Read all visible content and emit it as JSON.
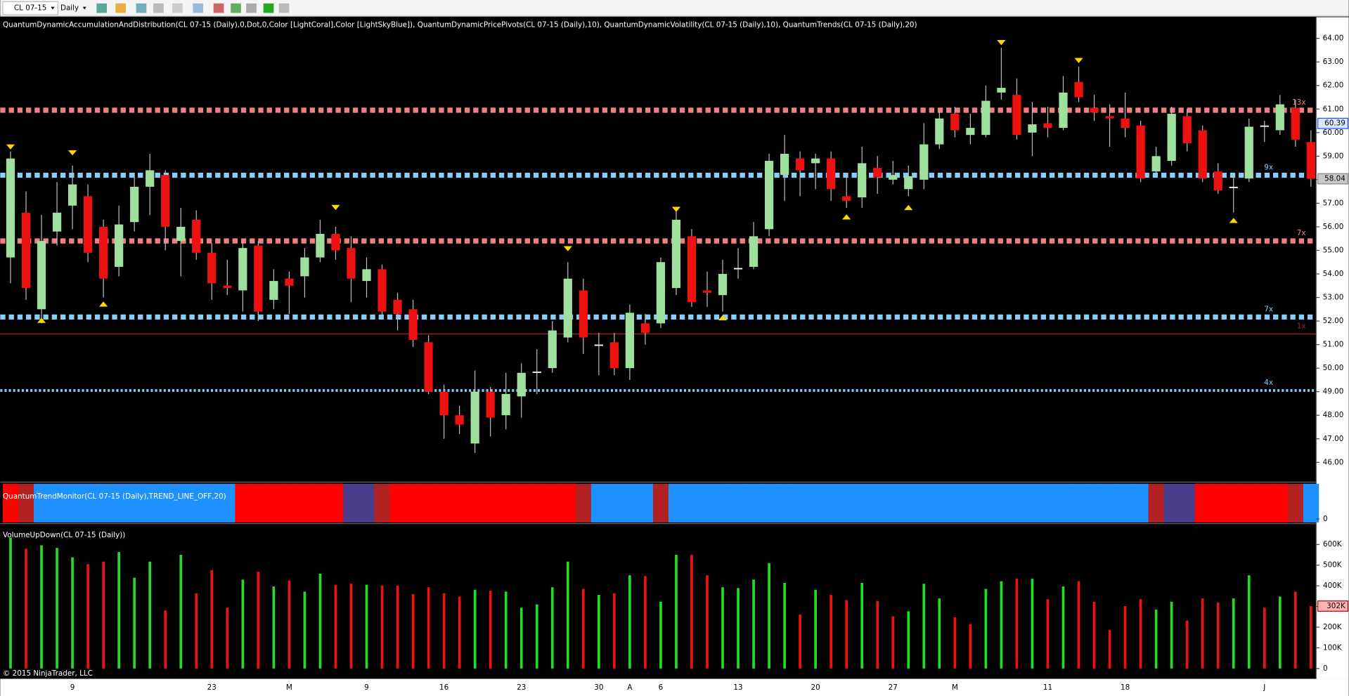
{
  "toolbar": {
    "symbol": "CL 07-15",
    "interval": "Daily"
  },
  "chart_data": [
    {
      "type": "candlestick",
      "title": "QuantumDynamicAccumulationAndDistribution(CL 07-15 (Daily),0,Dot,0,Color [LightCoral],Color [LightSkyBlue]), QuantumDynamicPricePivots(CL 07-15 (Daily),10), QuantumDynamicVolatility(CL 07-15 (Daily),10), QuantumTrends(CL 07-15 (Daily),20)",
      "categories": [
        null,
        null,
        null,
        null,
        "9",
        null,
        null,
        null,
        null,
        null,
        null,
        null,
        null,
        "23",
        null,
        null,
        null,
        null,
        "M",
        null,
        null,
        null,
        null,
        "9",
        null,
        null,
        null,
        null,
        "16",
        null,
        null,
        null,
        null,
        "23",
        null,
        null,
        null,
        null,
        "30",
        null,
        "A",
        null,
        "6",
        null,
        null,
        null,
        null,
        "13",
        null,
        null,
        null,
        null,
        "20",
        null,
        null,
        null,
        null,
        "27",
        null,
        null,
        null,
        "M",
        null,
        null,
        null,
        null,
        null,
        "11",
        null,
        null,
        null,
        null,
        "18",
        null,
        null,
        null,
        null,
        null,
        null,
        null,
        null,
        "J",
        null,
        null,
        null
      ],
      "open": [
        54.7,
        56.6,
        52.5,
        55.8,
        56.9,
        57.3,
        56.0,
        54.3,
        56.2,
        57.7,
        58.2,
        55.4,
        56.3,
        54.9,
        53.5,
        53.3,
        55.2,
        52.9,
        53.8,
        53.9,
        54.7,
        55.7,
        55.1,
        53.7,
        54.2,
        52.9,
        52.5,
        51.1,
        49.0,
        48.0,
        46.8,
        49.0,
        48.0,
        48.8,
        49.8,
        50.0,
        51.3,
        53.3,
        51.0,
        51.1,
        50.0,
        51.9,
        51.9,
        53.4,
        55.6,
        53.3,
        53.1,
        54.2,
        54.3,
        55.9,
        58.2,
        58.9,
        58.7,
        58.9,
        57.3,
        57.25,
        58.5,
        58.0,
        57.6,
        58.0,
        59.5,
        60.8,
        59.9,
        59.9,
        61.7,
        61.6,
        60.0,
        60.4,
        60.2,
        62.15,
        61.05,
        60.7,
        60.6,
        60.3,
        58.35,
        58.8,
        60.7,
        60.1,
        58.35,
        57.7,
        58.05,
        60.3,
        60.1,
        61.05,
        59.6
      ],
      "high": [
        59.2,
        57.5,
        56.5,
        57.9,
        58.6,
        57.8,
        56.3,
        56.9,
        58.3,
        59.1,
        58.4,
        56.8,
        56.7,
        55.3,
        54.6,
        55.4,
        55.4,
        54.2,
        54.1,
        55.1,
        56.3,
        56.0,
        55.6,
        54.7,
        54.4,
        53.2,
        52.9,
        51.4,
        49.3,
        48.4,
        49.9,
        49.2,
        49.8,
        50.2,
        50.8,
        52.0,
        54.5,
        53.8,
        51.5,
        51.5,
        52.7,
        52.3,
        54.7,
        56.7,
        55.9,
        54.1,
        54.6,
        55.1,
        56.2,
        59.1,
        59.9,
        59.2,
        59.1,
        59.2,
        58.2,
        59.4,
        59.0,
        58.8,
        58.6,
        60.4,
        60.9,
        61.1,
        60.8,
        62.0,
        63.6,
        62.3,
        61.3,
        61.1,
        62.4,
        62.8,
        61.6,
        61.2,
        61.7,
        60.5,
        59.4,
        61.1,
        61.0,
        60.3,
        58.7,
        58.2,
        60.6,
        60.5,
        61.6,
        61.4,
        60.1
      ],
      "low": [
        53.6,
        52.9,
        51.9,
        55.2,
        55.9,
        54.5,
        53.0,
        53.9,
        55.8,
        56.5,
        55.0,
        53.9,
        54.6,
        52.9,
        53.1,
        52.4,
        52.0,
        52.5,
        52.3,
        53.0,
        54.5,
        54.6,
        52.8,
        53.0,
        52.2,
        51.6,
        50.9,
        48.9,
        47.0,
        47.2,
        46.4,
        47.1,
        47.4,
        47.9,
        48.9,
        49.8,
        51.1,
        50.6,
        49.7,
        49.7,
        49.5,
        51.0,
        51.7,
        53.1,
        52.6,
        52.6,
        52.4,
        53.8,
        54.2,
        55.6,
        57.1,
        57.3,
        57.6,
        57.1,
        56.8,
        56.8,
        57.4,
        57.8,
        57.3,
        57.6,
        59.3,
        59.8,
        59.5,
        59.8,
        61.4,
        59.7,
        59.0,
        59.8,
        60.1,
        61.3,
        60.5,
        59.4,
        59.8,
        57.9,
        58.2,
        58.6,
        59.2,
        57.9,
        57.4,
        56.6,
        57.9,
        59.6,
        59.9,
        59.4,
        57.7
      ],
      "close": [
        58.9,
        53.4,
        55.4,
        56.6,
        57.8,
        54.9,
        53.8,
        56.1,
        57.7,
        58.4,
        56.0,
        56.0,
        54.9,
        53.6,
        53.4,
        55.1,
        52.4,
        53.7,
        53.5,
        54.7,
        55.7,
        55.0,
        53.8,
        54.2,
        52.4,
        52.3,
        51.2,
        49.0,
        48.0,
        47.6,
        49.0,
        47.9,
        48.9,
        49.8,
        49.85,
        51.6,
        53.8,
        51.3,
        50.95,
        50.0,
        52.35,
        51.5,
        54.5,
        56.3,
        52.8,
        53.2,
        54.0,
        54.25,
        55.6,
        58.8,
        59.1,
        58.4,
        58.9,
        57.6,
        57.1,
        58.7,
        58.1,
        58.2,
        58.15,
        59.5,
        60.6,
        60.1,
        60.2,
        61.35,
        61.9,
        59.9,
        60.35,
        60.2,
        61.7,
        61.5,
        60.85,
        60.6,
        60.2,
        58.05,
        59.0,
        60.8,
        59.55,
        58.05,
        57.55,
        57.65,
        60.25,
        60.25,
        61.2,
        59.7,
        58.04
      ],
      "up_color": "#9fe09f",
      "down_color": "#ee1111",
      "pivot_color": "#ffd700",
      "pivot_high": [
        59.39,
        null,
        null,
        null,
        59.14,
        null,
        null,
        null,
        null,
        null,
        null,
        null,
        null,
        null,
        null,
        null,
        null,
        null,
        null,
        null,
        null,
        56.82,
        null,
        null,
        null,
        null,
        null,
        null,
        null,
        null,
        null,
        null,
        null,
        null,
        null,
        null,
        55.07,
        null,
        null,
        null,
        null,
        null,
        null,
        56.74,
        null,
        null,
        null,
        null,
        null,
        null,
        null,
        null,
        null,
        null,
        null,
        null,
        null,
        null,
        null,
        null,
        null,
        null,
        null,
        null,
        63.82,
        null,
        null,
        null,
        null,
        63.06,
        null,
        null,
        null,
        null,
        null,
        null,
        null,
        null,
        null,
        null,
        null,
        null,
        null,
        null,
        null
      ],
      "pivot_low": [
        null,
        null,
        52.03,
        null,
        null,
        null,
        52.72,
        null,
        null,
        null,
        null,
        null,
        null,
        null,
        null,
        null,
        null,
        null,
        null,
        null,
        null,
        null,
        null,
        null,
        null,
        null,
        null,
        null,
        null,
        null,
        null,
        null,
        null,
        null,
        null,
        null,
        null,
        null,
        null,
        null,
        null,
        null,
        null,
        null,
        null,
        null,
        52.14,
        null,
        null,
        null,
        null,
        null,
        null,
        null,
        56.42,
        null,
        null,
        null,
        56.82,
        null,
        null,
        null,
        null,
        null,
        null,
        null,
        null,
        null,
        null,
        null,
        null,
        null,
        null,
        null,
        null,
        null,
        null,
        null,
        null,
        56.27,
        null,
        null,
        null,
        null,
        null
      ],
      "levels": [
        {
          "value": 60.95,
          "label": "13x",
          "color": "#f08080",
          "style": "thick"
        },
        {
          "value": 58.19,
          "label": "9x",
          "color": "#87cefa",
          "style": "thick"
        },
        {
          "value": 55.4,
          "label": "7x",
          "color": "#f08080",
          "style": "thick"
        },
        {
          "value": 52.17,
          "label": "7x",
          "color": "#87cefa",
          "style": "thick"
        },
        {
          "value": 51.45,
          "label": "1x",
          "color": "#a52a2a",
          "style": "solid"
        },
        {
          "value": 49.05,
          "label": "4x",
          "color": "#87cefa",
          "style": "thin"
        }
      ],
      "badges": [
        {
          "value": 60.39,
          "color": "#dce6ff",
          "border": "#1e50ff"
        },
        {
          "value": 58.04,
          "color": "#c8c8c8",
          "border": "#888888"
        }
      ],
      "ylim": [
        45.2,
        64.9
      ],
      "yticks": [
        {
          "value": 46,
          "label": "46.00"
        },
        {
          "value": 47,
          "label": "47.00"
        },
        {
          "value": 48,
          "label": "48.00"
        },
        {
          "value": 49,
          "label": "49.00"
        },
        {
          "value": 50,
          "label": "50.00"
        },
        {
          "value": 51,
          "label": "51.00"
        },
        {
          "value": 52,
          "label": "52.00"
        },
        {
          "value": 53,
          "label": "53.00"
        },
        {
          "value": 54,
          "label": "54.00"
        },
        {
          "value": 55,
          "label": "55.00"
        },
        {
          "value": 56,
          "label": "56.00"
        },
        {
          "value": 57,
          "label": "57.00"
        },
        {
          "value": 58,
          "label": "58.00"
        },
        {
          "value": 59,
          "label": "59.00"
        },
        {
          "value": 60,
          "label": "60.00"
        },
        {
          "value": 61,
          "label": "61.00"
        },
        {
          "value": 62,
          "label": "62.00"
        },
        {
          "value": 63,
          "label": "63.00"
        },
        {
          "value": 64,
          "label": "64.00"
        }
      ]
    },
    {
      "type": "state-strip",
      "title": "QuantumTrendMonitor(CL 07-15 (Daily),TREND_LINE_OFF,20)",
      "states": [
        "#ff0000",
        "#b22222",
        "#1e90ff",
        "#1e90ff",
        "#1e90ff",
        "#1e90ff",
        "#1e90ff",
        "#1e90ff",
        "#1e90ff",
        "#1e90ff",
        "#1e90ff",
        "#1e90ff",
        "#1e90ff",
        "#1e90ff",
        "#1e90ff",
        "#ff0000",
        "#ff0000",
        "#ff0000",
        "#ff0000",
        "#ff0000",
        "#ff0000",
        "#ff0000",
        "#483d8b",
        "#483d8b",
        "#b22222",
        "#ff0000",
        "#ff0000",
        "#ff0000",
        "#ff0000",
        "#ff0000",
        "#ff0000",
        "#ff0000",
        "#ff0000",
        "#ff0000",
        "#ff0000",
        "#ff0000",
        "#ff0000",
        "#b22222",
        "#1e90ff",
        "#1e90ff",
        "#1e90ff",
        "#1e90ff",
        "#b22222",
        "#1e90ff",
        "#1e90ff",
        "#1e90ff",
        "#1e90ff",
        "#1e90ff",
        "#1e90ff",
        "#1e90ff",
        "#1e90ff",
        "#1e90ff",
        "#1e90ff",
        "#1e90ff",
        "#1e90ff",
        "#1e90ff",
        "#1e90ff",
        "#1e90ff",
        "#1e90ff",
        "#1e90ff",
        "#1e90ff",
        "#1e90ff",
        "#1e90ff",
        "#1e90ff",
        "#1e90ff",
        "#1e90ff",
        "#1e90ff",
        "#1e90ff",
        "#1e90ff",
        "#1e90ff",
        "#1e90ff",
        "#1e90ff",
        "#1e90ff",
        "#1e90ff",
        "#b22222",
        "#483d8b",
        "#483d8b",
        "#ff0000",
        "#ff0000",
        "#ff0000",
        "#ff0000",
        "#ff0000",
        "#ff0000",
        "#b22222",
        "#1e90ff"
      ],
      "yticks": [
        0
      ]
    },
    {
      "type": "bar",
      "title": "VolumeUpDown(CL 07-15 (Daily))",
      "values": [
        633000,
        579000,
        596000,
        583000,
        538000,
        505000,
        517000,
        563000,
        439000,
        517000,
        281000,
        550000,
        364000,
        476000,
        294000,
        430000,
        468000,
        397000,
        426000,
        372000,
        459000,
        405000,
        410000,
        405000,
        401000,
        401000,
        360000,
        393000,
        364000,
        348000,
        381000,
        376000,
        372000,
        294000,
        310000,
        393000,
        517000,
        385000,
        356000,
        364000,
        451000,
        447000,
        323000,
        550000,
        550000,
        451000,
        393000,
        389000,
        430000,
        509000,
        414000,
        261000,
        381000,
        356000,
        331000,
        414000,
        327000,
        252000,
        277000,
        410000,
        339000,
        248000,
        215000,
        385000,
        422000,
        434000,
        434000,
        335000,
        397000,
        422000,
        323000,
        186000,
        302000,
        335000,
        285000,
        323000,
        232000,
        339000,
        319000,
        339000,
        451000,
        294000,
        348000,
        372000,
        302000
      ],
      "colors": [
        "#22dd22",
        "#ee1111",
        "#22dd22",
        "#22dd22",
        "#22dd22",
        "#ee1111",
        "#ee1111",
        "#22dd22",
        "#22dd22",
        "#22dd22",
        "#ee1111",
        "#22dd22",
        "#ee1111",
        "#ee1111",
        "#ee1111",
        "#22dd22",
        "#ee1111",
        "#22dd22",
        "#ee1111",
        "#22dd22",
        "#22dd22",
        "#ee1111",
        "#ee1111",
        "#22dd22",
        "#ee1111",
        "#ee1111",
        "#ee1111",
        "#ee1111",
        "#ee1111",
        "#ee1111",
        "#22dd22",
        "#ee1111",
        "#22dd22",
        "#22dd22",
        "#22dd22",
        "#22dd22",
        "#22dd22",
        "#ee1111",
        "#22dd22",
        "#ee1111",
        "#22dd22",
        "#ee1111",
        "#22dd22",
        "#22dd22",
        "#ee1111",
        "#ee1111",
        "#22dd22",
        "#22dd22",
        "#22dd22",
        "#22dd22",
        "#22dd22",
        "#ee1111",
        "#22dd22",
        "#ee1111",
        "#ee1111",
        "#22dd22",
        "#ee1111",
        "#ee1111",
        "#22dd22",
        "#22dd22",
        "#22dd22",
        "#ee1111",
        "#ee1111",
        "#22dd22",
        "#22dd22",
        "#ee1111",
        "#22dd22",
        "#ee1111",
        "#22dd22",
        "#ee1111",
        "#ee1111",
        "#ee1111",
        "#ee1111",
        "#ee1111",
        "#22dd22",
        "#22dd22",
        "#ee1111",
        "#ee1111",
        "#ee1111",
        "#22dd22",
        "#22dd22",
        "#ee1111",
        "#22dd22",
        "#ee1111",
        "#ee1111"
      ],
      "badge": {
        "value": 302000,
        "label": "302K",
        "color": "#ffb4b4",
        "border": "#cc0000"
      },
      "ylim": [
        0,
        690000
      ],
      "yticks": [
        0,
        {
          "value": 100000,
          "label": "100K"
        },
        {
          "value": 200000,
          "label": "200K"
        },
        {
          "value": 300000,
          "label": "300K"
        },
        {
          "value": 400000,
          "label": "400K"
        },
        {
          "value": 500000,
          "label": "500K"
        },
        {
          "value": 600000,
          "label": "600K"
        }
      ]
    }
  ],
  "footer": {
    "copyright": "© 2015 NinjaTrader, LLC"
  }
}
